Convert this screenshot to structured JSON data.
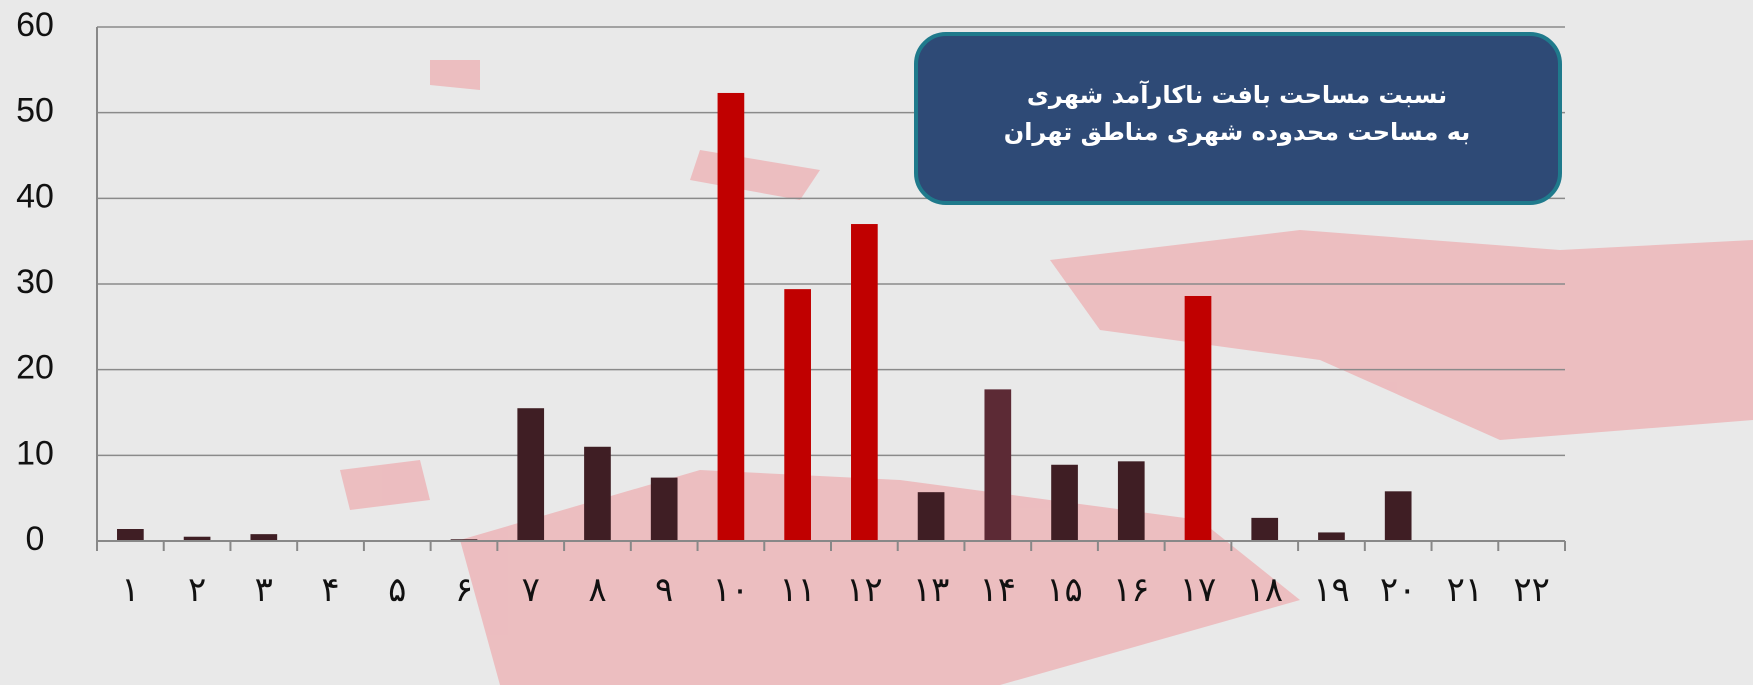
{
  "chart_data": {
    "type": "bar",
    "title": [
      "نسبت مساحت بافت ناکارآمد شهری",
      "به مساحت محدوده شهری مناطق تهران"
    ],
    "categories": [
      "۱",
      "۲",
      "۳",
      "۴",
      "۵",
      "۶",
      "۷",
      "۸",
      "۹",
      "۱۰",
      "۱۱",
      "۱۲",
      "۱۳",
      "۱۴",
      "۱۵",
      "۱۶",
      "۱۷",
      "۱۸",
      "۱۹",
      "۲۰",
      "۲۱",
      "۲۲"
    ],
    "values": [
      1.4,
      0.5,
      0.8,
      0,
      0,
      0.2,
      15.5,
      11,
      7.4,
      52.3,
      29.4,
      37,
      5.7,
      17.7,
      8.9,
      9.3,
      28.6,
      2.7,
      1.0,
      5.8,
      0,
      0
    ],
    "colors": [
      "#3f1e24",
      "#3f1e24",
      "#3f1e24",
      "#3f1e24",
      "#3f1e24",
      "#3f1e24",
      "#3f1e24",
      "#3f1e24",
      "#3f1e24",
      "#c00000",
      "#c00000",
      "#c00000",
      "#3f1e24",
      "#5c2a35",
      "#3f1e24",
      "#3f1e24",
      "#c00000",
      "#3f1e24",
      "#3f1e24",
      "#3f1e24",
      "#3f1e24",
      "#3f1e24"
    ],
    "ylim": [
      0,
      60
    ],
    "yticks": [
      0,
      10,
      20,
      30,
      40,
      50,
      60
    ],
    "grid": true
  }
}
